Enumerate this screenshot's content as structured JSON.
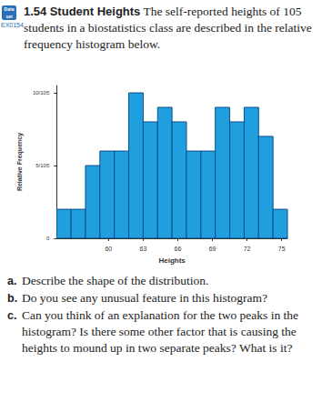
{
  "chart_data": {
    "type": "histogram",
    "xlabel": "Heights",
    "ylabel": "Relative Frequency",
    "bins": [
      55.5,
      56.75,
      58,
      59.25,
      60.5,
      61.75,
      63,
      64.25,
      65.5,
      66.75,
      68,
      69.25,
      70.5,
      71.75,
      73,
      74.25,
      75.5
    ],
    "values": [
      0.019,
      0.019,
      0.0476,
      0.0571,
      0.0571,
      0.0952,
      0.0762,
      0.0857,
      0.0762,
      0.0571,
      0.0571,
      0.0857,
      0.0762,
      0.0857,
      0.0667,
      0.019
    ],
    "color": "#1f9fe0",
    "xlim": [
      55.5,
      75.5
    ],
    "xticks": [
      60,
      63,
      66,
      69,
      72,
      75
    ],
    "ylim": [
      0,
      0.1
    ],
    "yticks": [
      0,
      {
        "value": 0.047619047619047616,
        "label": "5/105"
      },
      {
        "value": 0.09523809523809523,
        "label": "10/105"
      }
    ],
    "grid": false
  },
  "exercise": {
    "icon": "Data set",
    "id": "EX0154",
    "number": "1.54",
    "title": "Student Heights",
    "text": "The self-reported heights of 105 students in a biostatistics class are described in the relative frequency histogram below.",
    "questions": [
      {
        "label": "a.",
        "text": "Describe the shape of the distribution."
      },
      {
        "label": "b.",
        "text": "Do you see any unusual feature in this histogram?"
      },
      {
        "label": "c.",
        "text": "Can you think of an explanation for the two peaks in the histogram? Is there some other factor that is causing the heights to mound up in two separate peaks? What is it?"
      }
    ]
  }
}
